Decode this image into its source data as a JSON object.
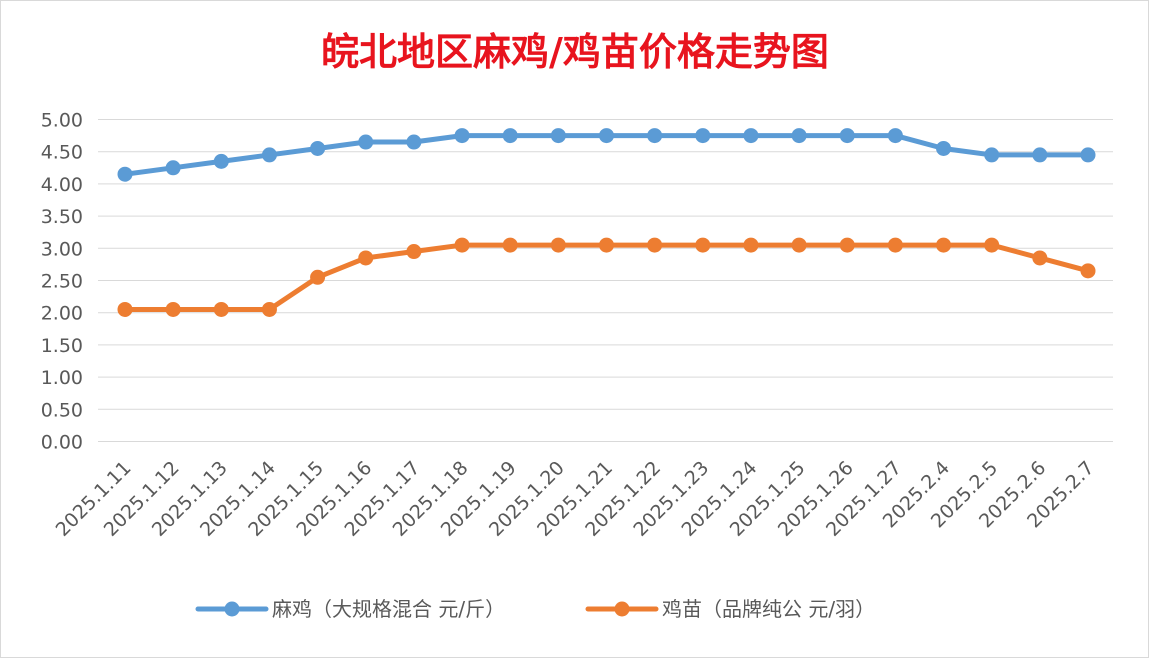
{
  "chart_data": {
    "type": "line",
    "title": "皖北地区麻鸡/鸡苗价格走势图",
    "categories": [
      "2025.1.11",
      "2025.1.12",
      "2025.1.13",
      "2025.1.14",
      "2025.1.15",
      "2025.1.16",
      "2025.1.17",
      "2025.1.18",
      "2025.1.19",
      "2025.1.20",
      "2025.1.21",
      "2025.1.22",
      "2025.1.23",
      "2025.1.24",
      "2025.1.25",
      "2025.1.26",
      "2025.1.27",
      "2025.2.4",
      "2025.2.5",
      "2025.2.6",
      "2025.2.7"
    ],
    "series": [
      {
        "name": "麻鸡（大规格混合 元/斤）",
        "color": "#5b9bd5",
        "values": [
          4.15,
          4.25,
          4.35,
          4.45,
          4.55,
          4.65,
          4.65,
          4.75,
          4.75,
          4.75,
          4.75,
          4.75,
          4.75,
          4.75,
          4.75,
          4.75,
          4.75,
          4.55,
          4.45,
          4.45,
          4.45
        ]
      },
      {
        "name": "鸡苗（品牌纯公 元/羽）",
        "color": "#ed7d31",
        "values": [
          2.05,
          2.05,
          2.05,
          2.05,
          2.55,
          2.85,
          2.95,
          3.05,
          3.05,
          3.05,
          3.05,
          3.05,
          3.05,
          3.05,
          3.05,
          3.05,
          3.05,
          3.05,
          3.05,
          2.85,
          2.65
        ]
      }
    ],
    "yticks": [
      "0.00",
      "0.50",
      "1.00",
      "1.50",
      "2.00",
      "2.50",
      "3.00",
      "3.50",
      "4.00",
      "4.50",
      "5.00"
    ],
    "ylim": [
      0,
      5
    ],
    "xlabel": "",
    "ylabel": "",
    "grid": true,
    "legend": "bottom",
    "title_color": "#e8141e"
  }
}
